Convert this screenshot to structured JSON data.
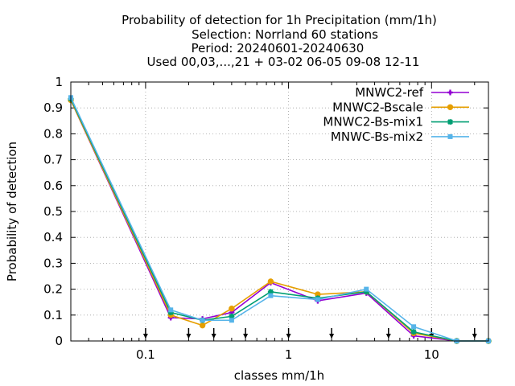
{
  "chart_data": {
    "type": "line",
    "title_lines": [
      "Probability of detection  for 1h Precipitation (mm/1h)",
      "Selection: Norrland     60 stations",
      "Period: 20240601-20240630",
      "Used 00,03,...,21 + 03-02 06-05 09-08 12-11"
    ],
    "xlabel": "classes mm/1h",
    "ylabel": "Probability of detection",
    "xscale": "log",
    "xlim": [
      0.03,
      25
    ],
    "ylim": [
      0,
      1
    ],
    "x_ticks": [
      0.1,
      1,
      10
    ],
    "x_tick_labels": [
      "0.1",
      "1",
      "10"
    ],
    "y_ticks": [
      0,
      0.1,
      0.2,
      0.3,
      0.4,
      0.5,
      0.6,
      0.7,
      0.8,
      0.9,
      1
    ],
    "y_tick_labels": [
      "0",
      "0.1",
      "0.2",
      "0.3",
      "0.4",
      "0.5",
      "0.6",
      "0.7",
      "0.8",
      "0.9",
      "1"
    ],
    "grid": true,
    "legend_position": "top-right",
    "threshold_markers": [
      0.1,
      0.2,
      0.3,
      0.5,
      1,
      2,
      5,
      10,
      20
    ],
    "x": [
      0.03,
      0.15,
      0.25,
      0.4,
      0.75,
      1.6,
      3.5,
      7.5,
      15,
      25
    ],
    "series": [
      {
        "name": "MNWC2-ref",
        "color": "#9400d3",
        "marker": "plus",
        "values": [
          0.93,
          0.09,
          0.085,
          0.11,
          0.225,
          0.155,
          0.185,
          0.02,
          0.0,
          0.0
        ]
      },
      {
        "name": "MNWC2-Bscale",
        "color": "#e69f00",
        "marker": "circle",
        "values": [
          0.93,
          0.1,
          0.06,
          0.125,
          0.23,
          0.18,
          0.19,
          0.03,
          0.0,
          0.0
        ]
      },
      {
        "name": "MNWC2-Bs-mix1",
        "color": "#009e73",
        "marker": "star",
        "values": [
          0.935,
          0.11,
          0.08,
          0.095,
          0.19,
          0.165,
          0.19,
          0.035,
          0.0,
          0.0
        ]
      },
      {
        "name": "MNWC-Bs-mix2",
        "color": "#56b4e9",
        "marker": "square",
        "values": [
          0.94,
          0.12,
          0.08,
          0.08,
          0.175,
          0.16,
          0.2,
          0.055,
          0.0,
          0.0
        ]
      }
    ]
  }
}
